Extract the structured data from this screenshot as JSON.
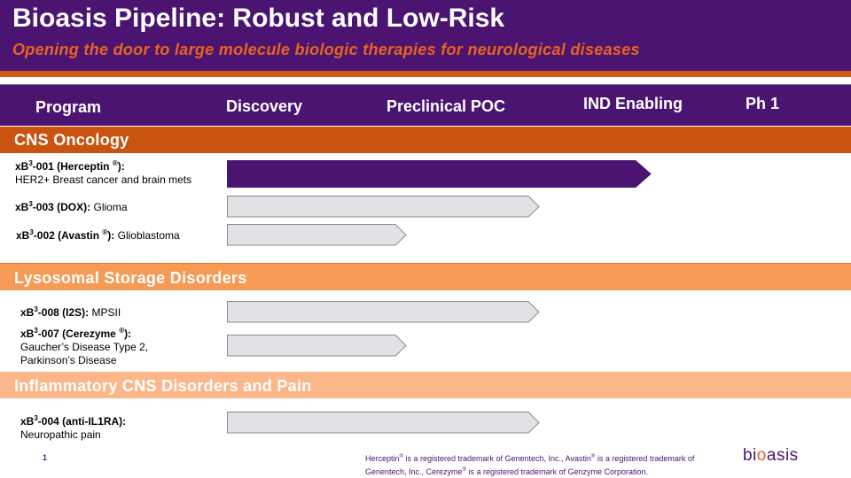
{
  "slide": {
    "title": "Bioasis Pipeline: Robust and Low-Risk",
    "subtitle": "Opening the door to large molecule biologic therapies for neurological diseases",
    "page_number": "1"
  },
  "columns": {
    "program": "Program",
    "discovery": "Discovery",
    "preclinical": "Preclinical POC",
    "ind": "IND Enabling",
    "ph1": "Ph 1"
  },
  "sections": {
    "cns_oncology": "CNS Oncology",
    "lysosomal": "Lysosomal Storage Disorders",
    "inflammatory": "Inflammatory CNS Disorders and Pain"
  },
  "programs": {
    "p001": {
      "prefix": "xB",
      "sup": "3",
      "code": "-001 (Herceptin",
      "reg": "®",
      "close": "):",
      "line2": "HER2+ Breast cancer and brain mets",
      "stage": "IND Enabling"
    },
    "p003": {
      "prefix": "xB",
      "sup": "3",
      "code": "-003 (DOX):",
      "indication": "Glioma",
      "stage": "Preclinical POC"
    },
    "p002": {
      "prefix": "xB",
      "sup": "3",
      "code": "-002 (Avastin",
      "reg": "®",
      "close": "):",
      "indication": "Glioblastoma",
      "stage": "Discovery"
    },
    "p008": {
      "prefix": "xB",
      "sup": "3",
      "code": "-008 (I2S):",
      "indication": "MPSII",
      "stage": "Preclinical POC"
    },
    "p007": {
      "prefix": "xB",
      "sup": "3",
      "code": "-007 (Cerezyme",
      "reg": "®",
      "close": "):",
      "line2": "Gaucher’s Disease Type 2,",
      "line3": "Parkinson’s Disease",
      "stage": "Discovery"
    },
    "p004": {
      "prefix": "xB",
      "sup": "3",
      "code": "-004 (anti-IL1RA):",
      "line2": "Neuropathic pain",
      "stage": "Preclinical POC"
    }
  },
  "footnote": {
    "line1_a": "Herceptin",
    "line1_b": " is a registered trademark of Genentech, Inc., Avastin",
    "line1_c": " is a registered trademark of",
    "line2_a": "Genentech, Inc., Cerezyme",
    "line2_b": " is a registered trademark of Genzyme Corporation.",
    "reg": "®"
  },
  "logo": {
    "part1": "bi",
    "accent": "o",
    "part2": "asis"
  },
  "colors": {
    "brand_purple": "#4a1470",
    "orange_dark": "#c95412",
    "orange_mid": "#f79a55",
    "orange_light": "#fbb78a",
    "bar_grey": "#e2e2e6",
    "bar_outline": "#8a8a8a"
  }
}
